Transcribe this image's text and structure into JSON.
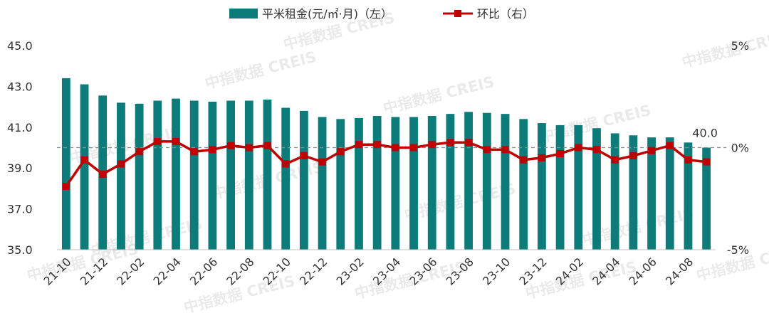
{
  "watermark": "中指数据 CREIS",
  "colors": {
    "bar": "#0e7b7b",
    "line": "#c00000",
    "ref_line": "#8c8c8c",
    "axis": "#bfbfbf"
  },
  "chart_data": {
    "type": "bar",
    "categories": [
      "21-10",
      "21-11",
      "21-12",
      "22-01",
      "22-02",
      "22-03",
      "22-04",
      "22-05",
      "22-06",
      "22-07",
      "22-08",
      "22-09",
      "22-10",
      "22-11",
      "22-12",
      "23-01",
      "23-02",
      "23-03",
      "23-04",
      "23-05",
      "23-06",
      "23-07",
      "23-08",
      "23-09",
      "23-10",
      "23-11",
      "23-12",
      "24-01",
      "24-02",
      "24-03",
      "24-04",
      "24-05",
      "24-06",
      "24-07",
      "24-08",
      "24-09"
    ],
    "x_tick_labels": [
      "21-10",
      "21-12",
      "22-02",
      "22-04",
      "22-06",
      "22-08",
      "22-10",
      "22-12",
      "23-02",
      "23-04",
      "23-06",
      "23-08",
      "23-10",
      "23-12",
      "24-02",
      "24-04",
      "24-06",
      "24-08"
    ],
    "series": [
      {
        "name": "平米租金(元/㎡·月)（左）",
        "type": "bar",
        "axis": "left",
        "values": [
          43.4,
          43.1,
          42.55,
          42.2,
          42.15,
          42.3,
          42.4,
          42.3,
          42.25,
          42.3,
          42.3,
          42.35,
          41.95,
          41.8,
          41.5,
          41.4,
          41.45,
          41.55,
          41.5,
          41.5,
          41.55,
          41.65,
          41.75,
          41.7,
          41.65,
          41.4,
          41.2,
          41.1,
          41.1,
          40.95,
          40.7,
          40.6,
          40.5,
          40.5,
          40.25,
          40.0
        ]
      },
      {
        "name": "环比（右）",
        "type": "line",
        "axis": "right",
        "values": [
          -1.9,
          -0.6,
          -1.3,
          -0.8,
          -0.2,
          0.3,
          0.3,
          -0.2,
          -0.1,
          0.1,
          0.0,
          0.1,
          -0.8,
          -0.4,
          -0.7,
          -0.2,
          0.15,
          0.15,
          0.0,
          0.0,
          0.15,
          0.25,
          0.25,
          -0.1,
          -0.1,
          -0.6,
          -0.5,
          -0.3,
          0.0,
          -0.1,
          -0.6,
          -0.4,
          -0.15,
          0.1,
          -0.6,
          -0.7
        ]
      }
    ],
    "y_left": {
      "range": [
        35.0,
        45.0
      ],
      "ticks": [
        35.0,
        37.0,
        39.0,
        41.0,
        43.0,
        45.0
      ],
      "tick_labels": [
        "35.0",
        "37.0",
        "39.0",
        "41.0",
        "43.0",
        "45.0"
      ]
    },
    "y_right": {
      "range": [
        -5,
        5
      ],
      "ticks": [
        -5,
        0,
        5
      ],
      "tick_labels": [
        "-5%",
        "0%",
        "5%"
      ]
    },
    "last_value_label": "40.0",
    "legend_position": "top-center",
    "grid": false
  }
}
